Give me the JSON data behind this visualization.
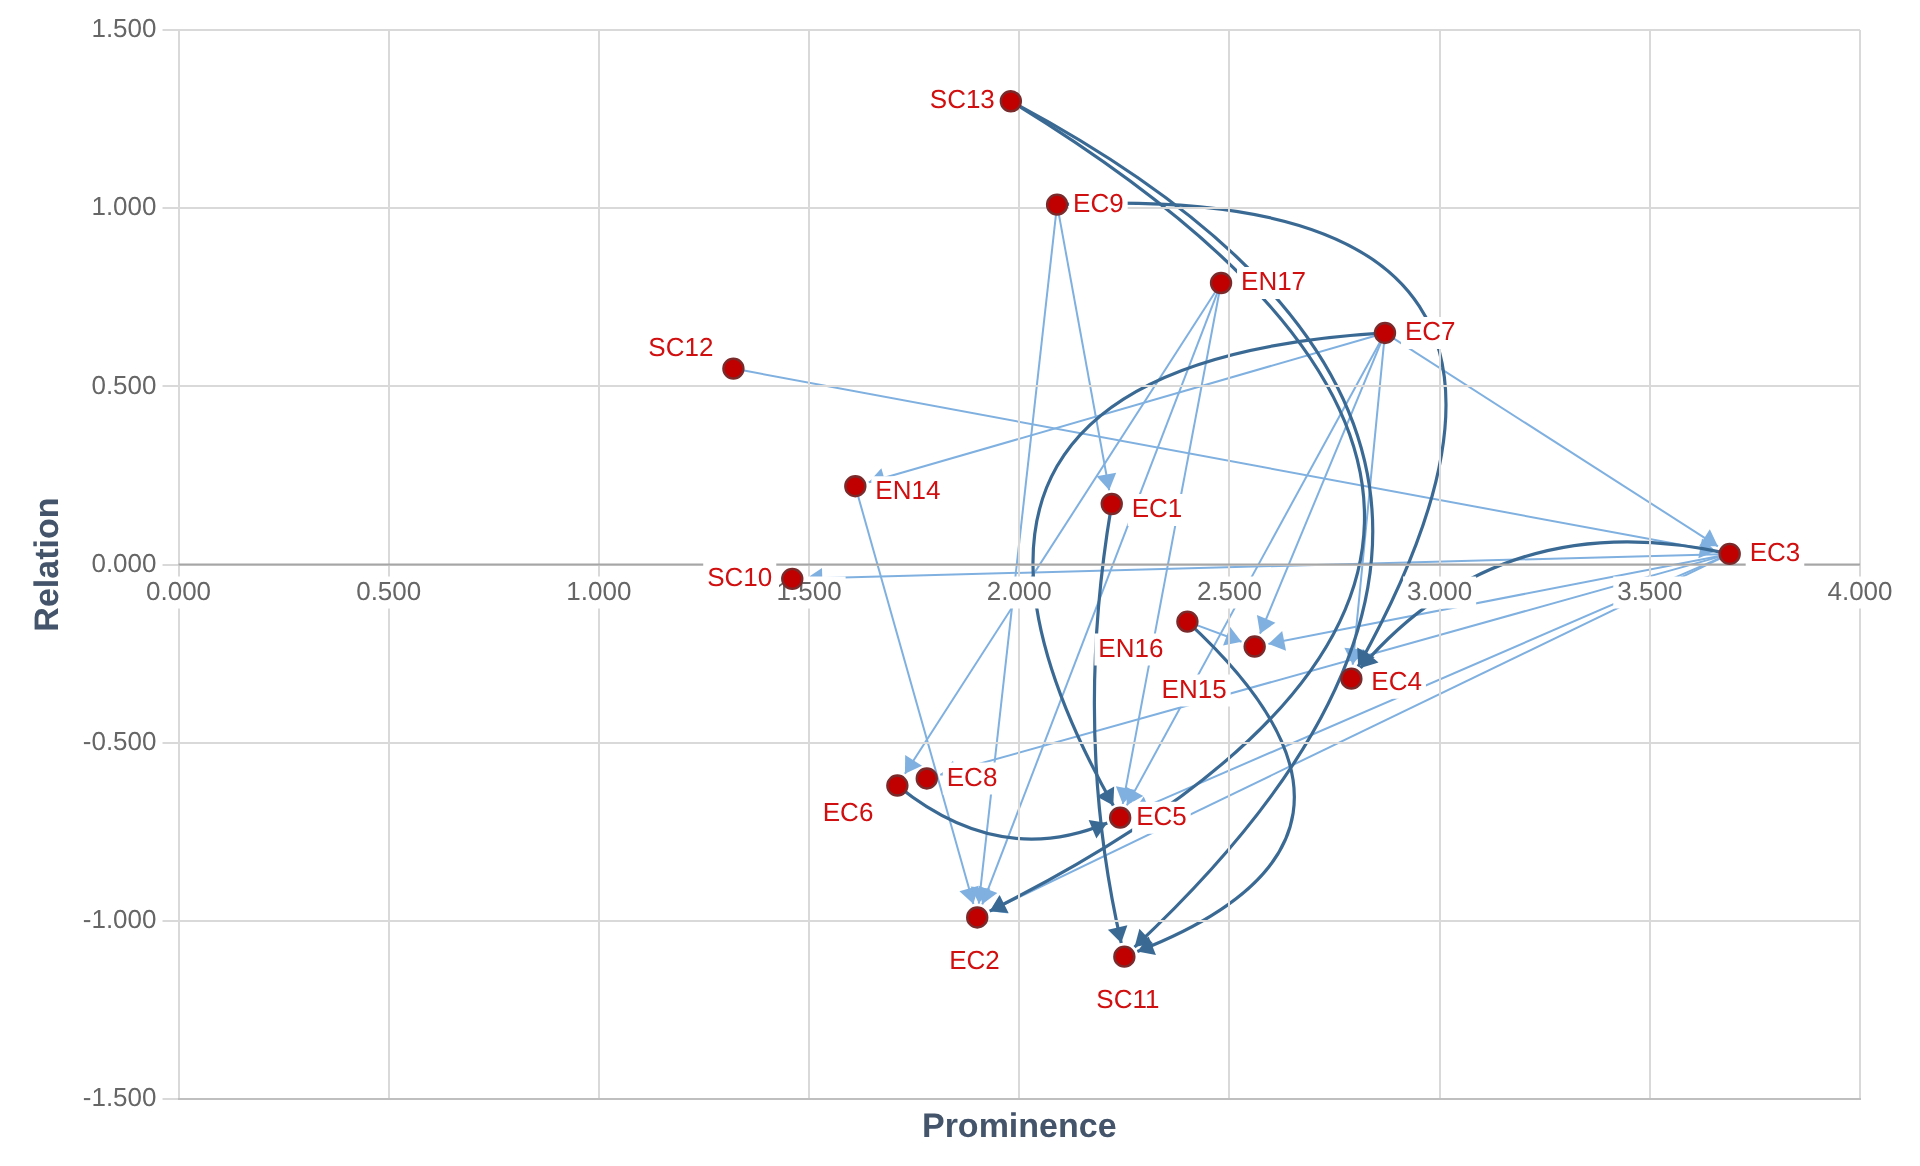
{
  "chart_data": {
    "type": "scatter",
    "xlabel": "Prominence",
    "ylabel": "Relation",
    "x": [
      1.98,
      2.09,
      2.48,
      2.87,
      1.32,
      1.61,
      2.22,
      3.69,
      1.46,
      2.4,
      2.56,
      2.79,
      1.71,
      1.78,
      2.24,
      1.9,
      2.25
    ],
    "series": [
      {
        "color": "#c00000",
        "values": [
          1.3,
          1.01,
          0.79,
          0.65,
          0.55,
          0.22,
          0.17,
          0.03,
          -0.04,
          -0.16,
          -0.23,
          -0.32,
          -0.62,
          -0.6,
          -0.71,
          -0.99,
          -1.1
        ]
      }
    ],
    "annotations": [
      {
        "text": "SC13",
        "x": 1.98,
        "y": 1.3
      },
      {
        "text": "EC9",
        "x": 2.09,
        "y": 1.01
      },
      {
        "text": "EN17",
        "x": 2.48,
        "y": 0.79
      },
      {
        "text": "EC7",
        "x": 2.87,
        "y": 0.65
      },
      {
        "text": "SC12",
        "x": 1.32,
        "y": 0.55
      },
      {
        "text": "EN14",
        "x": 1.61,
        "y": 0.22
      },
      {
        "text": "EC1",
        "x": 2.22,
        "y": 0.17
      },
      {
        "text": "EC3",
        "x": 3.69,
        "y": 0.03
      },
      {
        "text": "SC10",
        "x": 1.46,
        "y": -0.04
      },
      {
        "text": "EN16",
        "x": 2.4,
        "y": -0.16
      },
      {
        "text": "EN15",
        "x": 2.56,
        "y": -0.23
      },
      {
        "text": "EC4",
        "x": 2.79,
        "y": -0.32
      },
      {
        "text": "EC6",
        "x": 1.71,
        "y": -0.62
      },
      {
        "text": "EC8",
        "x": 1.78,
        "y": -0.6
      },
      {
        "text": "EC5",
        "x": 2.24,
        "y": -0.71
      },
      {
        "text": "EC2",
        "x": 1.9,
        "y": -0.99
      },
      {
        "text": "SC11",
        "x": 2.25,
        "y": -1.1
      }
    ],
    "xlim": [
      0,
      4
    ],
    "ylim": [
      -1.5,
      1.5
    ],
    "xticks": [
      {
        "value": 0,
        "label": "0.000"
      },
      {
        "value": 0.5,
        "label": "0.500"
      },
      {
        "value": 1,
        "label": "1.000"
      },
      {
        "value": 1.5,
        "label": "1.500"
      },
      {
        "value": 2,
        "label": "2.000"
      },
      {
        "value": 2.5,
        "label": "2.500"
      },
      {
        "value": 3,
        "label": "3.000"
      },
      {
        "value": 3.5,
        "label": "3.500"
      },
      {
        "value": 4,
        "label": "4.000"
      }
    ],
    "yticks": [
      {
        "value": -1.5,
        "label": "-1.500"
      },
      {
        "value": -1,
        "label": "-1.000"
      },
      {
        "value": -0.5,
        "label": "-0.500"
      },
      {
        "value": 0,
        "label": "0.000"
      },
      {
        "value": 0.5,
        "label": "0.500"
      },
      {
        "value": 1,
        "label": "1.000"
      },
      {
        "value": 1.5,
        "label": "1.500"
      }
    ],
    "grid": true,
    "legend": false,
    "marker": "circle"
  }
}
